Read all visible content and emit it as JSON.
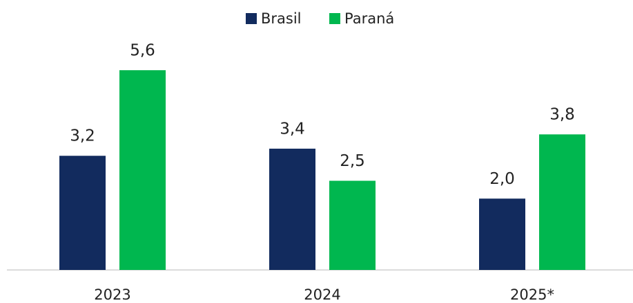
{
  "chart_data": {
    "type": "bar",
    "categories": [
      "2023",
      "2024",
      "2025*"
    ],
    "series": [
      {
        "name": "Brasil",
        "color": "#122b5e",
        "values": [
          3.2,
          3.4,
          2.0
        ],
        "value_labels": [
          "3,2",
          "3,4",
          "2,0"
        ]
      },
      {
        "name": "Paraná",
        "color": "#00b74f",
        "values": [
          5.6,
          2.5,
          3.8
        ],
        "value_labels": [
          "5,6",
          "2,5",
          "3,8"
        ]
      }
    ],
    "legend": "top"
  }
}
